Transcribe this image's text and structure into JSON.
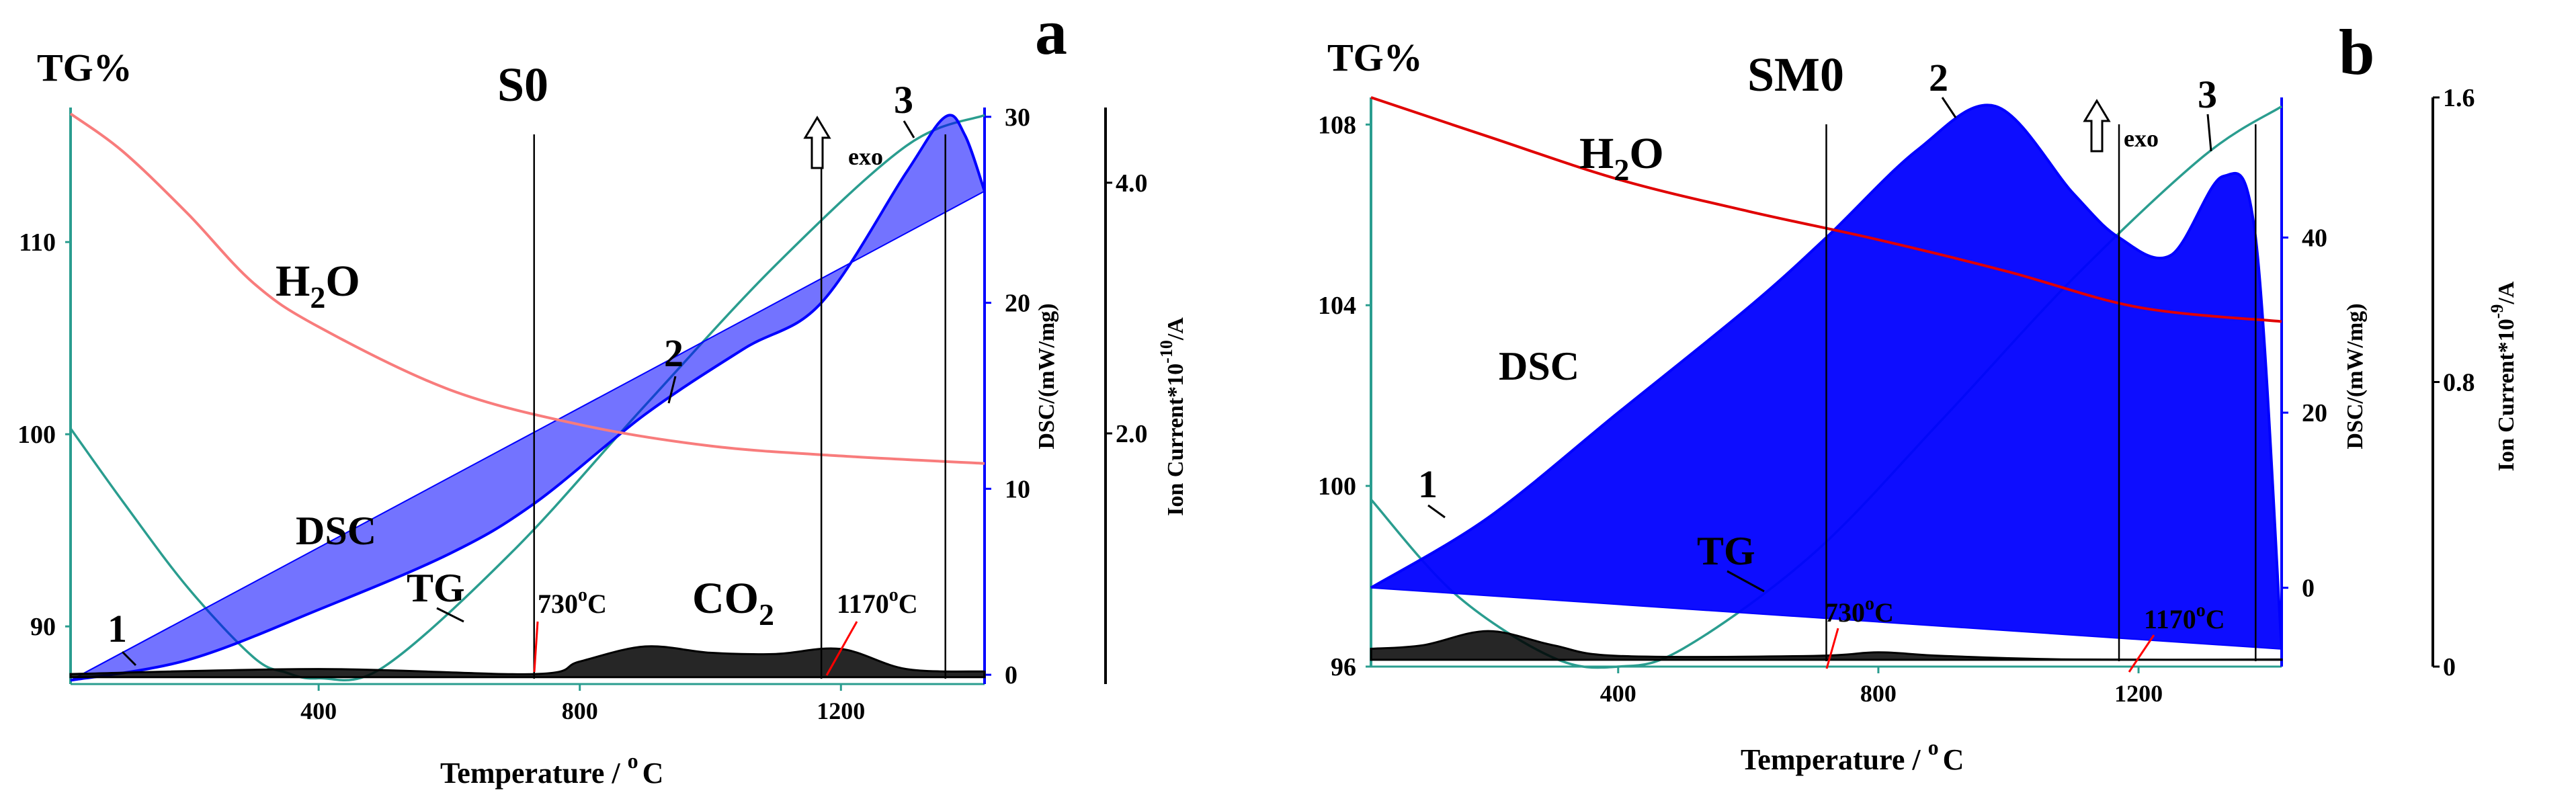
{
  "chart_data": [
    {
      "type": "line",
      "panel_letter": "a",
      "title": "S0",
      "xlabel_text": "Temperature / ",
      "xlabel_sup": "o",
      "xlabel_unit": "C",
      "xlim": [
        20,
        1420
      ],
      "x_ticks": [
        "400",
        "800",
        "1200"
      ],
      "tg_axis_title": "TG%",
      "tg_ylim": [
        87,
        117
      ],
      "tg_ticks": [
        "90",
        "100",
        "110"
      ],
      "dsc_axis_title": "DSC/(mW/mg)",
      "dsc_ylim": [
        -0.5,
        30.5
      ],
      "dsc_ticks": [
        "0",
        "10",
        "20",
        "30"
      ],
      "ion_axis_title_prefix": "Ion Current*10",
      "ion_axis_title_exp": "-10",
      "ion_axis_title_suffix": "/A",
      "ion_ylim": [
        0,
        4.6
      ],
      "ion_ticks": [
        "2.0",
        "4.0"
      ],
      "exo_label": "exo",
      "labels": {
        "h2o_main": "H",
        "h2o_sub": "2",
        "h2o_end": "O",
        "co2_main": "CO",
        "co2_sub": "2",
        "dsc": "DSC",
        "tg": "TG",
        "t730_value": "730",
        "t730_sup": "o",
        "t730_unit": "C",
        "t1170_value": "1170",
        "t1170_sup": "o",
        "t1170_unit": "C",
        "peak1": "1",
        "peak2": "2",
        "peak3": "3"
      },
      "series": [
        {
          "name": "TG",
          "color": "#2a9d8f",
          "x": [
            20,
            100,
            200,
            300,
            350,
            400,
            500,
            700,
            900,
            1100,
            1300,
            1420
          ],
          "y": [
            100.3,
            96.5,
            92.0,
            88.4,
            87.6,
            87.3,
            87.9,
            94.0,
            101.5,
            108.8,
            115.0,
            116.6
          ]
        },
        {
          "name": "DSC",
          "color": "#0000ff",
          "x": [
            20,
            200,
            400,
            600,
            730,
            900,
            1050,
            1170,
            1300,
            1360,
            1390,
            1420
          ],
          "y": [
            -0.3,
            0.8,
            3.5,
            6.5,
            9.2,
            14.0,
            17.5,
            20.0,
            27.0,
            30.0,
            29.0,
            26.0
          ]
        },
        {
          "name": "H2O",
          "color": "#f87c7c",
          "x": [
            20,
            100,
            200,
            300,
            400,
            600,
            800,
            1000,
            1200,
            1420
          ],
          "y": [
            4.55,
            4.25,
            3.75,
            3.2,
            2.85,
            2.35,
            2.07,
            1.9,
            1.82,
            1.76
          ]
        },
        {
          "name": "CO2",
          "color": "#000000",
          "x": [
            20,
            400,
            730,
            800,
            900,
            1000,
            1100,
            1200,
            1300,
            1420
          ],
          "y": [
            0.08,
            0.12,
            0.08,
            0.18,
            0.3,
            0.25,
            0.24,
            0.28,
            0.12,
            0.1
          ]
        }
      ],
      "event_temperatures": [
        730,
        1170,
        1360
      ]
    },
    {
      "type": "line",
      "panel_letter": "b",
      "title": "SM0",
      "xlabel_text": "Temperature / ",
      "xlabel_sup": "o",
      "xlabel_unit": "C",
      "xlim": [
        20,
        1420
      ],
      "x_ticks": [
        "400",
        "800",
        "1200"
      ],
      "tg_axis_title": "TG%",
      "tg_ylim": [
        96,
        108.6
      ],
      "tg_ticks": [
        "96",
        "100",
        "104",
        "108"
      ],
      "dsc_axis_title": "DSC/(mW/mg)",
      "dsc_ylim": [
        -9,
        56
      ],
      "dsc_ticks": [
        "0",
        "20",
        "40"
      ],
      "ion_axis_title_prefix": "Ion Current*10",
      "ion_axis_title_exp": "-9",
      "ion_axis_title_suffix": "/A",
      "ion_ylim": [
        0,
        1.6
      ],
      "ion_ticks": [
        "0",
        "0.8",
        "1.6"
      ],
      "exo_label": "exo",
      "labels": {
        "h2o_main": "H",
        "h2o_sub": "2",
        "h2o_end": "O",
        "dsc": "DSC",
        "tg": "TG",
        "t730_value": "730",
        "t730_sup": "o",
        "t730_unit": "C",
        "t1170_value": "1170",
        "t1170_sup": "o",
        "t1170_unit": "C",
        "peak1": "1",
        "peak2": "2",
        "peak3": "3"
      },
      "series": [
        {
          "name": "TG",
          "color": "#2a9d8f",
          "x": [
            20,
            150,
            300,
            400,
            500,
            700,
            900,
            1100,
            1300,
            1420
          ],
          "y": [
            99.7,
            97.6,
            96.2,
            96.0,
            96.4,
            98.5,
            101.5,
            104.6,
            107.3,
            108.4
          ]
        },
        {
          "name": "DSC",
          "color": "#0000ff",
          "x": [
            20,
            200,
            400,
            600,
            720,
            860,
            980,
            1100,
            1170,
            1250,
            1330,
            1380,
            1420
          ],
          "y": [
            0,
            8.0,
            20.0,
            32.0,
            40.0,
            50.0,
            55.0,
            45.0,
            40.0,
            38.0,
            47.0,
            40.0,
            -7.0
          ]
        },
        {
          "name": "H2O",
          "color": "#e00000",
          "x": [
            20,
            200,
            400,
            600,
            800,
            1000,
            1200,
            1420
          ],
          "y": [
            1.6,
            1.49,
            1.37,
            1.28,
            1.2,
            1.11,
            1.01,
            0.97
          ]
        },
        {
          "name": "CO2",
          "color": "#000000",
          "x": [
            20,
            100,
            200,
            300,
            400,
            700,
            800,
            900,
            1100,
            1420
          ],
          "y": [
            0.05,
            0.06,
            0.1,
            0.06,
            0.03,
            0.03,
            0.04,
            0.03,
            0.02,
            0.02
          ]
        }
      ],
      "event_temperatures": [
        720,
        1170,
        1380
      ]
    }
  ]
}
